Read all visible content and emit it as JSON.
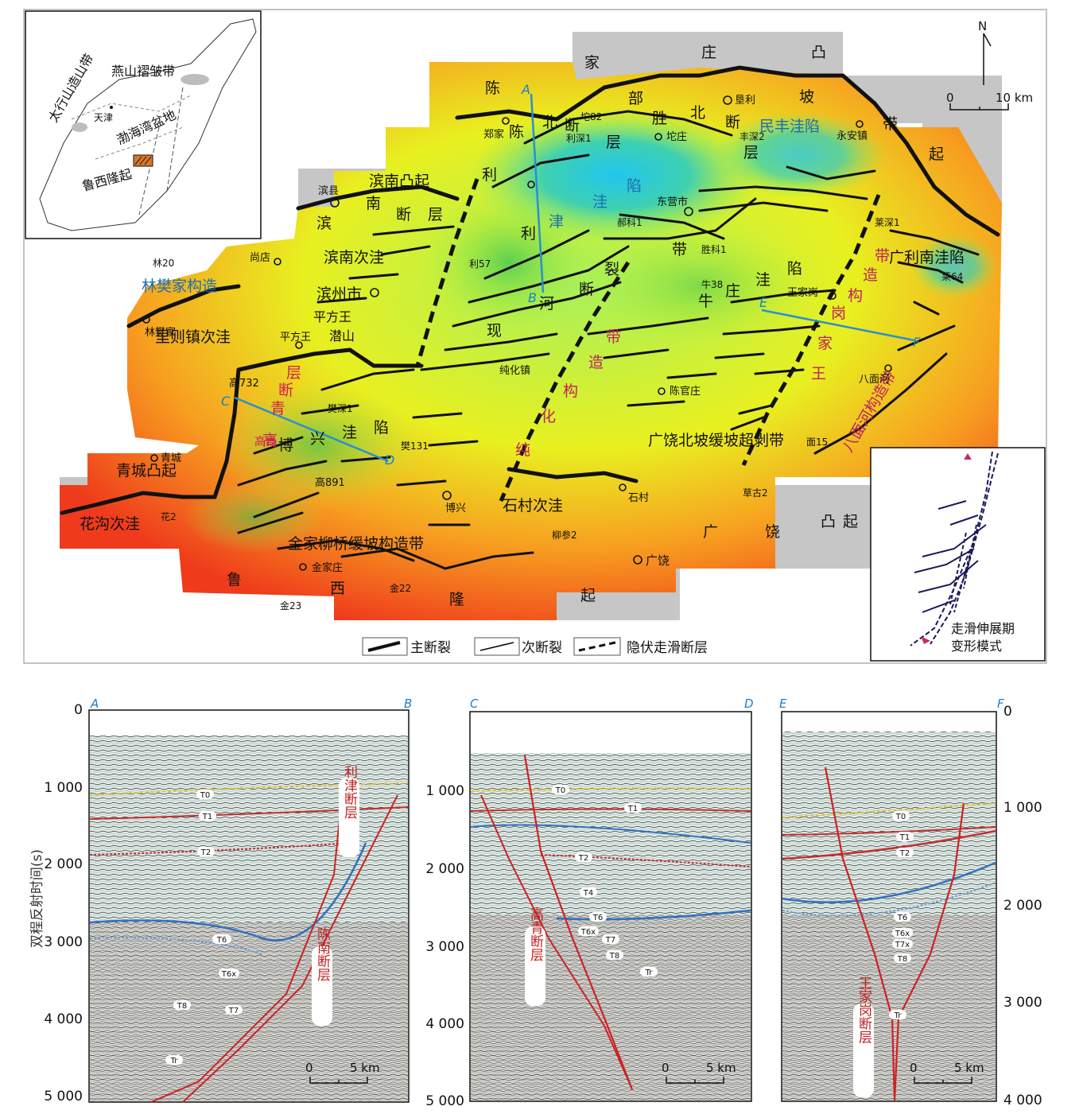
{
  "inset_map": {
    "labels": [
      "太行山造山带",
      "燕山褶皱带",
      "天津",
      "渤海湾盆地",
      "鲁西隆起"
    ]
  },
  "north_arrow": {
    "label": "N"
  },
  "scale_bar": {
    "zero": "0",
    "end": "10 km"
  },
  "map_labels": {
    "uplifts": [
      "陈",
      "家",
      "庄",
      "凸",
      "起",
      "滨南凸起",
      "青城凸起",
      "广",
      "饶",
      "凸",
      "起",
      "鲁",
      "西",
      "隆",
      "起",
      "部",
      "坡",
      "带"
    ],
    "sags": [
      "利",
      "津",
      "洼",
      "陷",
      "民丰洼陷",
      "牛",
      "庄",
      "洼",
      "陷",
      "博",
      "兴",
      "洼",
      "陷",
      "广利南洼陷",
      "滨南次洼",
      "里则镇次洼",
      "花沟次洼",
      "石村次洼",
      "林樊家构造",
      "平方王",
      "潜山"
    ],
    "faults": [
      "陈",
      "北",
      "断",
      "层",
      "胜",
      "北",
      "断",
      "层",
      "滨",
      "南",
      "断",
      "层",
      "利",
      "河",
      "断",
      "裂",
      "带",
      "现",
      "高",
      "青",
      "断",
      "层"
    ],
    "zones": [
      "纯",
      "化",
      "构",
      "造",
      "带",
      "王",
      "家",
      "岗",
      "构",
      "造",
      "带",
      "八面河构造带",
      "广饶北坡缓坡超剥带",
      "金家柳桥缓坡构造带",
      "高青"
    ],
    "towns": [
      "滨县",
      "尚店",
      "滨州市",
      "林樊家",
      "平方王",
      "高732",
      "青城",
      "高891",
      "博兴",
      "石村",
      "广饶",
      "金家庄",
      "东营市",
      "垦利",
      "坨庄",
      "永安镇",
      "郑家",
      "王家岗",
      "八面河",
      "陈官庄",
      "纯化镇"
    ],
    "wells": [
      "林20",
      "利57",
      "坨82",
      "利深1",
      "丰深2",
      "莱深1",
      "莱64",
      "牛38",
      "樊深1",
      "樊131",
      "柳参2",
      "金22",
      "金23",
      "草古2",
      "面15",
      "花2",
      "郝科1",
      "胜科1"
    ]
  },
  "profile_lines": [
    "A",
    "B",
    "C",
    "D",
    "E",
    "F"
  ],
  "legend": {
    "main_fault": "主断裂",
    "sub_fault": "次断裂",
    "hidden_fault": "隐伏走滑断层"
  },
  "deformation_inset": {
    "caption_line1": "走滑伸展期",
    "caption_line2": "变形模式"
  },
  "sections": {
    "y_axis_label": "双程反射时间(s)",
    "left_ticks": [
      "0",
      "1 000",
      "2 000",
      "3 000",
      "4 000",
      "5 000"
    ],
    "mid_ticks": [
      "1 000",
      "2 000",
      "3 000",
      "4 000",
      "5 000"
    ],
    "right_ticks": [
      "0",
      "1 000",
      "2 000",
      "3 000",
      "4 000"
    ],
    "ab": {
      "start": "A",
      "end": "B",
      "horizons": [
        "T0",
        "T1",
        "T2",
        "T6",
        "T6x",
        "T7",
        "T8",
        "Tr"
      ],
      "faults": [
        "利津断层",
        "陈南断层"
      ],
      "scale": [
        "0",
        "5 km"
      ]
    },
    "cd": {
      "start": "C",
      "end": "D",
      "horizons": [
        "T0",
        "T1",
        "T2",
        "T4",
        "T6",
        "T6x",
        "T7",
        "T8",
        "Tr"
      ],
      "faults": [
        "高青断层"
      ],
      "scale": [
        "0",
        "5 km"
      ]
    },
    "ef": {
      "start": "E",
      "end": "F",
      "horizons": [
        "T0",
        "T1",
        "T2",
        "T6",
        "T6x",
        "T7x",
        "T8",
        "Tr"
      ],
      "faults": [
        "王家岗断层"
      ],
      "scale": [
        "0",
        "5 km"
      ]
    }
  },
  "colors": {
    "deep": "#2fc9e8",
    "shallow_high": "#f03020",
    "mid": "#e8f020",
    "uplift_gray": "#c4c4c4",
    "fault": "#111111",
    "profile": "#2a8fd0",
    "section_fault": "#d02020"
  }
}
